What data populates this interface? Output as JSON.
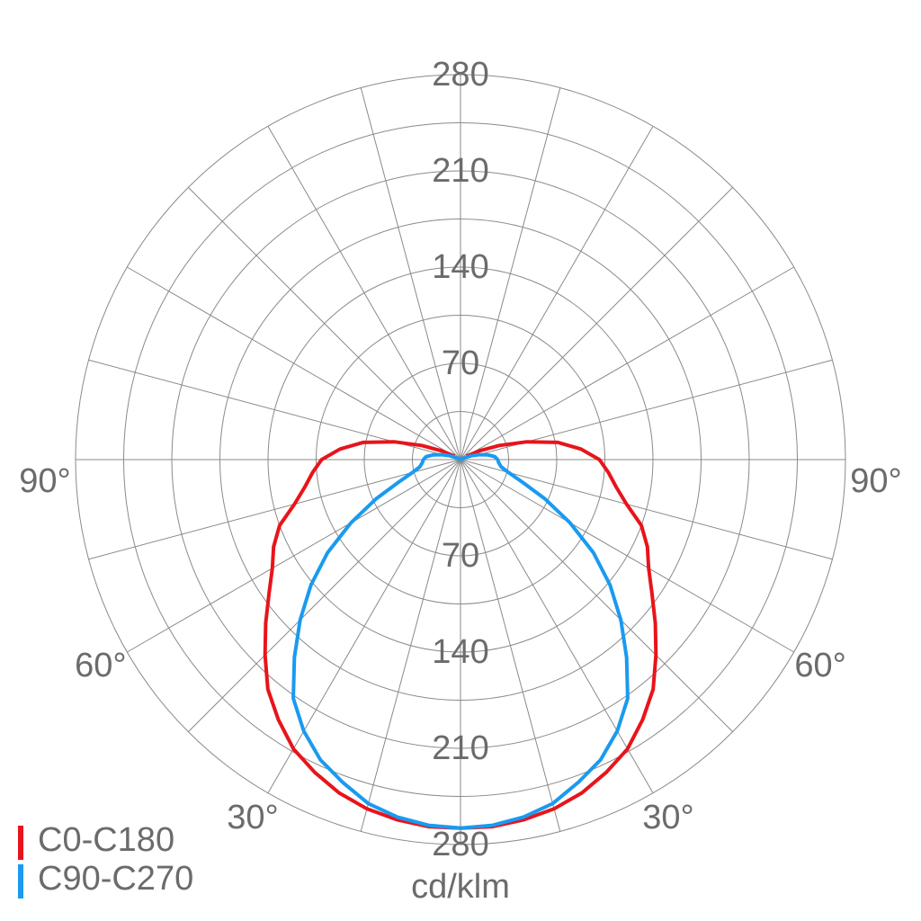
{
  "chart_data": {
    "type": "polar",
    "unit_label": "cd/klm",
    "angles": [
      0,
      5,
      10,
      15,
      20,
      25,
      30,
      35,
      40,
      45,
      50,
      55,
      60,
      65,
      70,
      75,
      80,
      85,
      90,
      95,
      100,
      105,
      110,
      115,
      120
    ],
    "series": [
      {
        "name": "C0-C180",
        "color": "#e8141b",
        "values": [
          268,
          268,
          266,
          263,
          258,
          251,
          243,
          231,
          218,
          201,
          185,
          170,
          158,
          150,
          140,
          125,
          115,
          108,
          101,
          88,
          72,
          50,
          30,
          15,
          5
        ]
      },
      {
        "name": "C90-C270",
        "color": "#1a9af0",
        "values": [
          268,
          267,
          264,
          259,
          250,
          241,
          228,
          212,
          188,
          165,
          142,
          118,
          92,
          68,
          48,
          36,
          30,
          28,
          27,
          25,
          20,
          14,
          8,
          3,
          0
        ]
      }
    ],
    "rlim": [
      0,
      280
    ],
    "rticks": [
      70,
      140,
      210,
      280
    ],
    "minor_rticks": [
      35,
      105,
      175,
      245
    ],
    "angle_grid_step": 15,
    "angle_ticks": [
      {
        "value": 30,
        "label": "30°"
      },
      {
        "value": 60,
        "label": "60°"
      },
      {
        "value": 90,
        "label": "90°"
      }
    ]
  }
}
